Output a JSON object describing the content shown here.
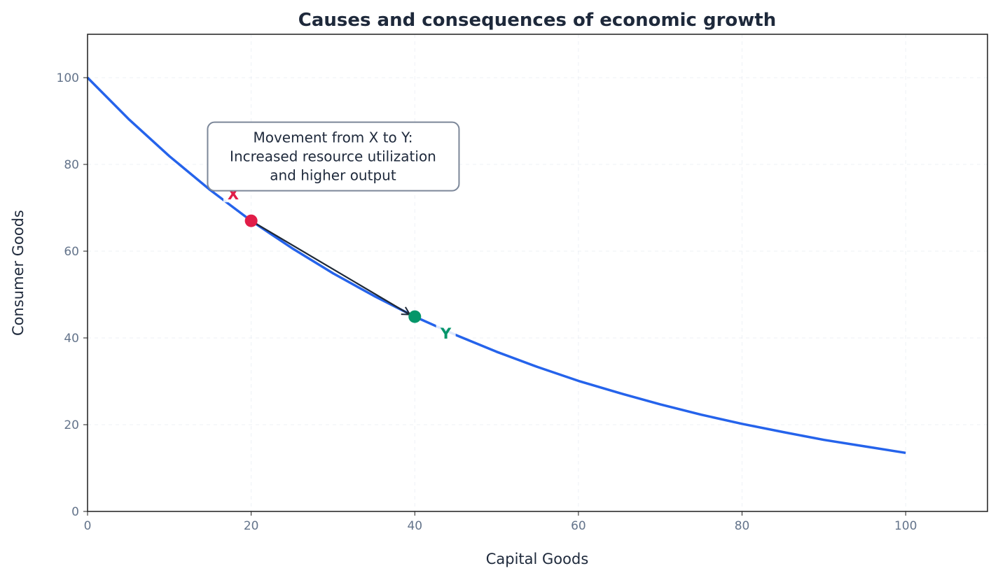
{
  "chart_data": {
    "type": "line",
    "title": "Causes and consequences of economic growth",
    "xlabel": "Capital Goods",
    "ylabel": "Consumer Goods",
    "xlim": [
      0,
      110
    ],
    "ylim": [
      0,
      110
    ],
    "xticks": [
      0,
      20,
      40,
      60,
      80,
      100
    ],
    "yticks": [
      0,
      20,
      40,
      60,
      80,
      100
    ],
    "grid": true,
    "series": [
      {
        "color": "#2563eb",
        "x": [
          0,
          5,
          10,
          15,
          20,
          25,
          30,
          35,
          40,
          45,
          50,
          55,
          60,
          65,
          70,
          75,
          80,
          85,
          90,
          95,
          100
        ],
        "y": [
          100,
          90.5,
          81.9,
          74.1,
          67.0,
          60.7,
          54.9,
          49.7,
          44.9,
          40.7,
          36.8,
          33.3,
          30.1,
          27.3,
          24.7,
          22.3,
          20.2,
          18.3,
          16.5,
          15.0,
          13.5
        ]
      }
    ],
    "points": [
      {
        "label": "X",
        "x": 20,
        "y": 67.0,
        "color": "#e11d48",
        "label_x": 17.8,
        "label_y": 73.2
      },
      {
        "label": "Y",
        "x": 40,
        "y": 44.9,
        "color": "#059669",
        "label_x": 43.8,
        "label_y": 41.1
      }
    ],
    "annotation": {
      "lines": [
        "Movement from X to Y:",
        "Increased resource utilization",
        "and higher output"
      ],
      "x": 30,
      "y": 82,
      "arrow_from": [
        20,
        67.0
      ],
      "arrow_to": [
        40,
        44.9
      ]
    }
  }
}
